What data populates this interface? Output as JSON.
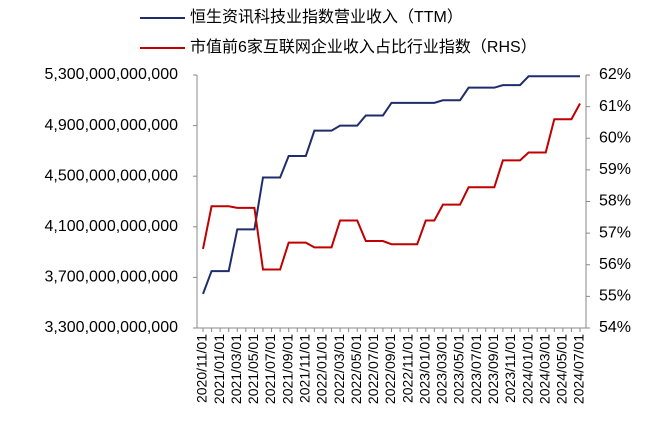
{
  "chart_data": {
    "type": "line",
    "categories": [
      "2020/11/01",
      null,
      "2021/01/01",
      null,
      "2021/03/01",
      null,
      "2021/05/01",
      null,
      "2021/07/01",
      null,
      "2021/09/01",
      null,
      "2021/11/01",
      null,
      "2022/01/01",
      null,
      "2022/03/01",
      null,
      "2022/05/01",
      null,
      "2022/07/01",
      null,
      "2022/09/01",
      null,
      "2022/11/01",
      null,
      "2023/01/01",
      null,
      "2023/03/01",
      null,
      "2023/05/01",
      null,
      "2023/07/01",
      null,
      "2023/09/01",
      null,
      "2023/11/01",
      null,
      "2024/01/01",
      null,
      "2024/03/01",
      null,
      "2024/05/01",
      null,
      "2024/07/01"
    ],
    "series": [
      {
        "name": "恒生资讯科技业指数营业收入（TTM）",
        "color": "#1f2d6b",
        "values": [
          3570000000000,
          3750000000000,
          3750000000000,
          3750000000000,
          4080000000000,
          4080000000000,
          4080000000000,
          4490000000000,
          4490000000000,
          4490000000000,
          4660000000000,
          4660000000000,
          4660000000000,
          4860000000000,
          4860000000000,
          4860000000000,
          4900000000000,
          4900000000000,
          4900000000000,
          4980000000000,
          4980000000000,
          4980000000000,
          5080000000000,
          5080000000000,
          5080000000000,
          5080000000000,
          5080000000000,
          5080000000000,
          5100000000000,
          5100000000000,
          5100000000000,
          5200000000000,
          5200000000000,
          5200000000000,
          5200000000000,
          5220000000000,
          5220000000000,
          5220000000000,
          5290000000000,
          5290000000000,
          5290000000000,
          5290000000000,
          5290000000000,
          5290000000000,
          5290000000000
        ]
      },
      {
        "name": "市值前6家互联网企业收入占比行业指数（RHS）",
        "color": "#c00000",
        "axis": "y2",
        "values": [
          56.5,
          57.85,
          57.85,
          57.85,
          57.8,
          57.8,
          57.8,
          55.85,
          55.85,
          55.85,
          56.7,
          56.7,
          56.7,
          56.55,
          56.55,
          56.55,
          57.4,
          57.4,
          57.4,
          56.75,
          56.75,
          56.75,
          56.65,
          56.65,
          56.65,
          56.65,
          57.4,
          57.4,
          57.9,
          57.9,
          57.9,
          58.45,
          58.45,
          58.45,
          58.45,
          59.3,
          59.3,
          59.3,
          59.55,
          59.55,
          59.55,
          60.6,
          60.6,
          60.6,
          61.1
        ]
      }
    ],
    "ylim": [
      3300000000000,
      5300000000000
    ],
    "yticks": [
      {
        "value": 3300000000000,
        "label": "3,300,000,000,000"
      },
      {
        "value": 3700000000000,
        "label": "3,700,000,000,000"
      },
      {
        "value": 4100000000000,
        "label": "4,100,000,000,000"
      },
      {
        "value": 4500000000000,
        "label": "4,500,000,000,000"
      },
      {
        "value": 4900000000000,
        "label": "4,900,000,000,000"
      },
      {
        "value": 5300000000000,
        "label": "5,300,000,000,000"
      }
    ],
    "y2lim": [
      54,
      62
    ],
    "y2ticks": [
      {
        "value": 54,
        "label": "54%"
      },
      {
        "value": 55,
        "label": "55%"
      },
      {
        "value": 56,
        "label": "56%"
      },
      {
        "value": 57,
        "label": "57%"
      },
      {
        "value": 58,
        "label": "58%"
      },
      {
        "value": 59,
        "label": "59%"
      },
      {
        "value": 60,
        "label": "60%"
      },
      {
        "value": 61,
        "label": "61%"
      },
      {
        "value": 62,
        "label": "62%"
      }
    ],
    "grid": false,
    "legend": "top"
  }
}
